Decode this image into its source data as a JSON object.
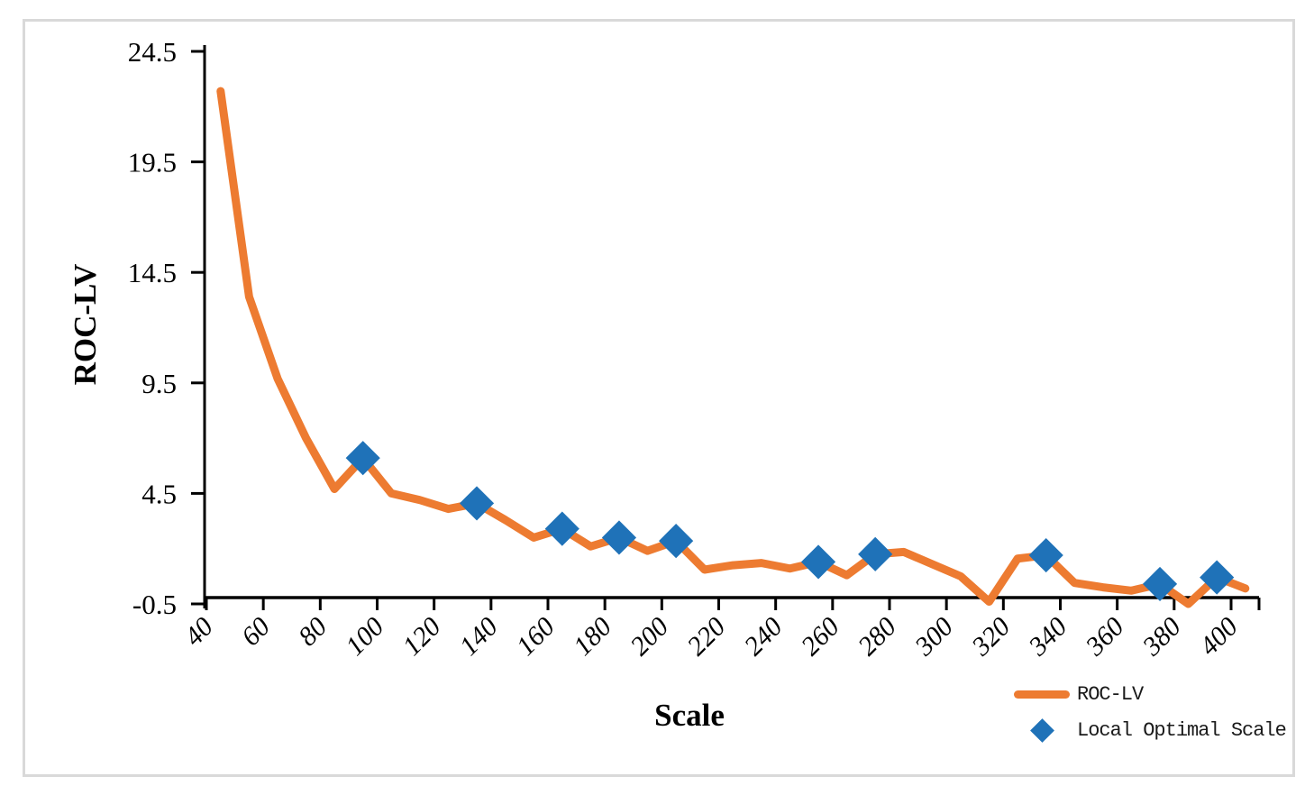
{
  "chart_data": {
    "type": "line",
    "title": "",
    "xlabel": "Scale",
    "ylabel": "ROC-LV",
    "xlim": [
      40,
      410
    ],
    "ylim": [
      -0.5,
      24.5
    ],
    "grid": false,
    "legend_position": "bottom-right",
    "x_tick_labels": [
      "40",
      "60",
      "80",
      "100",
      "120",
      "140",
      "160",
      "180",
      "200",
      "220",
      "240",
      "260",
      "280",
      "300",
      "320",
      "340",
      "360",
      "380",
      "400"
    ],
    "x_ticks": [
      40,
      60,
      80,
      100,
      120,
      140,
      160,
      180,
      200,
      220,
      240,
      260,
      280,
      300,
      320,
      340,
      360,
      380,
      400
    ],
    "y_tick_labels": [
      "24.5",
      "19.5",
      "14.5",
      "9.5",
      "4.5",
      "-0.5"
    ],
    "y_ticks": [
      24.5,
      19.5,
      14.5,
      9.5,
      4.5,
      -0.5
    ],
    "x": [
      45,
      55,
      65,
      75,
      85,
      95,
      105,
      115,
      125,
      135,
      145,
      155,
      165,
      175,
      185,
      195,
      205,
      215,
      225,
      235,
      245,
      255,
      265,
      275,
      285,
      295,
      305,
      315,
      325,
      335,
      345,
      355,
      365,
      375,
      385,
      395,
      405
    ],
    "series": [
      {
        "name": "ROC-LV",
        "type": "line",
        "color": "#ED7B31",
        "values": [
          22.7,
          13.4,
          9.7,
          7.0,
          4.7,
          6.1,
          4.5,
          4.2,
          3.8,
          4.05,
          3.3,
          2.5,
          2.9,
          2.1,
          2.5,
          1.9,
          2.35,
          1.05,
          1.25,
          1.35,
          1.1,
          1.4,
          0.8,
          1.75,
          1.85,
          1.3,
          0.75,
          -0.4,
          1.55,
          1.7,
          0.45,
          0.25,
          0.1,
          0.4,
          -0.5,
          0.7,
          0.2
        ]
      },
      {
        "name": "Local Optimal Scale",
        "type": "scatter",
        "marker": "diamond",
        "color": "#1F72B8",
        "x": [
          95,
          135,
          165,
          185,
          205,
          255,
          275,
          335,
          375,
          395
        ],
        "values": [
          6.1,
          4.05,
          2.9,
          2.5,
          2.35,
          1.4,
          1.75,
          1.7,
          0.4,
          0.7
        ]
      }
    ]
  },
  "axes": {
    "x_title": "Scale",
    "y_title": "ROC-LV"
  },
  "legend": {
    "line_label": "ROC-LV",
    "marker_label": "Local Optimal Scale"
  },
  "colors": {
    "line": "#ED7B31",
    "marker": "#1F72B8",
    "axis": "#000000",
    "frame": "#D9D9D9",
    "background": "#FFFFFF"
  }
}
